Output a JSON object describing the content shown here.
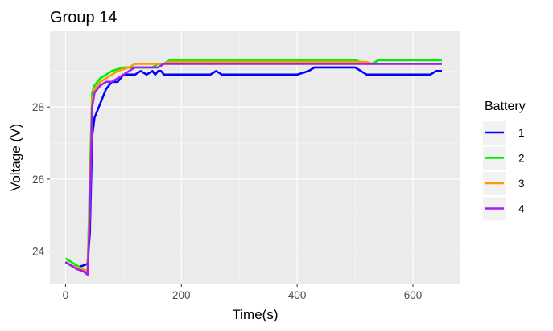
{
  "chart_data": {
    "type": "line",
    "title": "Group 14",
    "xlabel": "Time(s)",
    "ylabel": "Voltage (V)",
    "xlim": [
      -27,
      682
    ],
    "ylim": [
      23.1,
      30.1
    ],
    "x_ticks": [
      0,
      200,
      400,
      600
    ],
    "x_tick_labels": [
      "0",
      "200",
      "400",
      "600"
    ],
    "y_ticks": [
      24,
      26,
      28
    ],
    "y_tick_labels": [
      "24",
      "26",
      "28"
    ],
    "grid": true,
    "background": "#ebebeb",
    "reference_line": {
      "y": 25.25,
      "color": "#e31a1c",
      "style": "dashed"
    },
    "legend": {
      "title": "Battery",
      "position": "right"
    },
    "series": [
      {
        "name": "1",
        "color": "#0000ff",
        "x": [
          0,
          10,
          20,
          30,
          38,
          42,
          46,
          50,
          55,
          60,
          65,
          70,
          75,
          80,
          85,
          90,
          95,
          100,
          105,
          110,
          120,
          130,
          140,
          150,
          155,
          160,
          165,
          170,
          180,
          200,
          250,
          260,
          270,
          300,
          350,
          400,
          410,
          420,
          430,
          440,
          450,
          500,
          510,
          520,
          530,
          600,
          620,
          630,
          640,
          650
        ],
        "y": [
          23.7,
          23.6,
          23.55,
          23.6,
          23.65,
          24.5,
          27.2,
          27.7,
          27.9,
          28.1,
          28.3,
          28.5,
          28.6,
          28.7,
          28.7,
          28.7,
          28.8,
          28.9,
          28.9,
          28.9,
          28.9,
          29.0,
          28.9,
          29.0,
          28.9,
          29.0,
          29.0,
          28.9,
          28.9,
          28.9,
          28.9,
          29.0,
          28.9,
          28.9,
          28.9,
          28.9,
          28.95,
          29.0,
          29.1,
          29.1,
          29.1,
          29.1,
          29.0,
          28.9,
          28.9,
          28.9,
          28.9,
          28.9,
          29.0,
          29.0
        ]
      },
      {
        "name": "2",
        "color": "#00ee00",
        "x": [
          0,
          10,
          20,
          30,
          38,
          42,
          46,
          50,
          55,
          60,
          70,
          80,
          90,
          100,
          110,
          120,
          130,
          140,
          150,
          160,
          170,
          180,
          200,
          300,
          400,
          500,
          520,
          530,
          540,
          600,
          650
        ],
        "y": [
          23.8,
          23.7,
          23.6,
          23.5,
          23.4,
          26.0,
          28.4,
          28.6,
          28.7,
          28.8,
          28.9,
          29.0,
          29.05,
          29.1,
          29.1,
          29.1,
          29.1,
          29.1,
          29.1,
          29.2,
          29.2,
          29.3,
          29.3,
          29.3,
          29.3,
          29.3,
          29.2,
          29.2,
          29.3,
          29.3,
          29.3
        ]
      },
      {
        "name": "3",
        "color": "#ff9900",
        "x": [
          0,
          10,
          20,
          30,
          38,
          42,
          46,
          50,
          55,
          60,
          70,
          80,
          90,
          100,
          110,
          120,
          130,
          140,
          150,
          160,
          170,
          180,
          200,
          300,
          400,
          500,
          520,
          530,
          600,
          650
        ],
        "y": [
          23.7,
          23.6,
          23.55,
          23.5,
          23.45,
          25.5,
          28.2,
          28.5,
          28.6,
          28.7,
          28.8,
          28.9,
          29.0,
          29.05,
          29.1,
          29.2,
          29.2,
          29.2,
          29.2,
          29.2,
          29.2,
          29.25,
          29.25,
          29.25,
          29.25,
          29.25,
          29.25,
          29.2,
          29.2,
          29.2
        ]
      },
      {
        "name": "4",
        "color": "#a020f0",
        "x": [
          0,
          10,
          20,
          30,
          38,
          42,
          46,
          50,
          55,
          60,
          70,
          80,
          90,
          100,
          110,
          120,
          130,
          140,
          150,
          160,
          170,
          180,
          200,
          300,
          400,
          500,
          600,
          650
        ],
        "y": [
          23.7,
          23.6,
          23.5,
          23.45,
          23.35,
          25.0,
          28.0,
          28.4,
          28.5,
          28.6,
          28.7,
          28.7,
          28.8,
          28.9,
          29.0,
          29.1,
          29.1,
          29.1,
          29.1,
          29.1,
          29.2,
          29.2,
          29.2,
          29.2,
          29.2,
          29.2,
          29.2,
          29.2
        ]
      }
    ]
  }
}
